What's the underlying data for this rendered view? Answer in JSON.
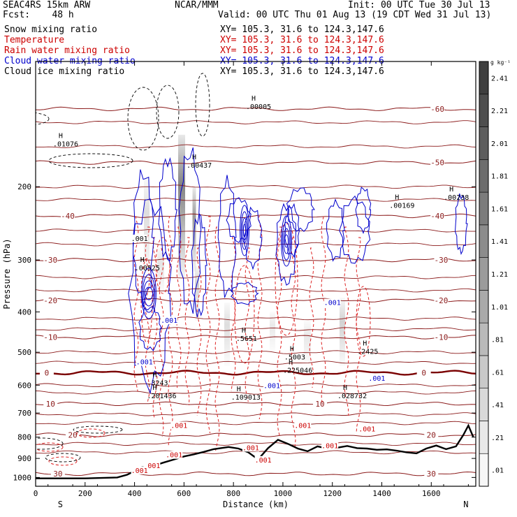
{
  "header": {
    "model": "SEAC4RS 15km ARW",
    "center": "NCAR/MMM",
    "init": "Init: 00 UTC Tue 30 Jul 13",
    "fcst": "Fcst:    48 h",
    "valid": "Valid: 00 UTC Thu 01 Aug 13 (19 CDT Wed 31 Jul 13)"
  },
  "fields": [
    {
      "name": "Snow mixing ratio",
      "color": "#000000",
      "xy": "XY= 105.3, 31.6 to 124.3,147.6"
    },
    {
      "name": "Temperature",
      "color": "#cc0000",
      "xy": "XY= 105.3, 31.6 to 124.3,147.6"
    },
    {
      "name": "Rain water mixing ratio",
      "color": "#cc0000",
      "xy": "XY= 105.3, 31.6 to 124.3,147.6"
    },
    {
      "name": "Cloud water mixing ratio",
      "color": "#0000cc",
      "xy": "XY= 105.3, 31.6 to 124.3,147.6"
    },
    {
      "name": "Cloud ice mixing ratio",
      "color": "#000000",
      "xy": "XY= 105.3, 31.6 to 124.3,147.6"
    }
  ],
  "chart_data": {
    "type": "contour",
    "xlabel": "Distance (km)",
    "ylabel": "Pressure (hPa)",
    "xlim": [
      0,
      1780
    ],
    "ylim": [
      1050,
      100
    ],
    "x_ticks": [
      0,
      200,
      400,
      600,
      800,
      1000,
      1200,
      1400,
      1600
    ],
    "y_ticks": [
      200,
      300,
      400,
      500,
      600,
      700,
      800,
      900,
      1000
    ],
    "x_end_labels": {
      "left": "S",
      "right": "N"
    },
    "colorbar": {
      "unit": "g kg⁻¹",
      "ticks": [
        ".01",
        ".21",
        ".41",
        ".61",
        ".81",
        "1.01",
        "1.21",
        "1.41",
        "1.61",
        "1.81",
        "2.01",
        "2.21",
        "2.41"
      ]
    },
    "temperature_contours": [
      {
        "label": "-60",
        "p": 130,
        "label_x": 1625
      },
      {
        "label": "-50",
        "p": 175,
        "label_x": 1625
      },
      {
        "label": "-40",
        "p": 235,
        "label_x": 130,
        "label_x2": 1625
      },
      {
        "label": "-30",
        "p": 300,
        "label_x": 60,
        "label_x2": 1640
      },
      {
        "label": "-20",
        "p": 375,
        "label_x": 60,
        "label_x2": 1640
      },
      {
        "label": "-10",
        "p": 460,
        "label_x": 60,
        "label_x2": 1640
      },
      {
        "label": "0",
        "p": 560,
        "label_x": 45,
        "label_x2": 1570
      },
      {
        "label": "10",
        "p": 665,
        "label_x": 60,
        "label_x2": 1150
      },
      {
        "label": "20",
        "p": 790,
        "label_x": 150,
        "label_x2": 1600
      },
      {
        "label": "30",
        "p": 980,
        "label_x": 90,
        "label_x2": 1600
      }
    ],
    "terrain": {
      "x": [
        0,
        200,
        330,
        370,
        400,
        430,
        470,
        520,
        560,
        600,
        640,
        680,
        720,
        780,
        820,
        860,
        900,
        940,
        980,
        1020,
        1060,
        1100,
        1140,
        1180,
        1220,
        1260,
        1300,
        1340,
        1380,
        1420,
        1460,
        1500,
        1540,
        1580,
        1620,
        1660,
        1700,
        1730,
        1750,
        1770
      ],
      "p": [
        1005,
        1005,
        1000,
        985,
        965,
        945,
        940,
        920,
        905,
        890,
        880,
        868,
        855,
        845,
        852,
        870,
        905,
        850,
        812,
        830,
        852,
        865,
        842,
        852,
        848,
        840,
        850,
        852,
        858,
        856,
        862,
        870,
        875,
        852,
        838,
        855,
        842,
        790,
        750,
        800
      ]
    },
    "max_labels": [
      {
        "text": ".01076",
        "x": 110,
        "p": 160
      },
      {
        "text": ".00437",
        "x": 650,
        "p": 180
      },
      {
        "text": ".00005",
        "x": 890,
        "p": 130
      },
      {
        "text": ".00169",
        "x": 1470,
        "p": 225
      },
      {
        "text": ".00238",
        "x": 1690,
        "p": 215
      },
      {
        "text": ".00525",
        "x": 440,
        "p": 318
      },
      {
        "text": ".5651",
        "x": 850,
        "p": 470
      },
      {
        "text": ".5003",
        "x": 1045,
        "p": 520
      },
      {
        "text": ".2425",
        "x": 1340,
        "p": 505
      },
      {
        "text": ".3243",
        "x": 490,
        "p": 600
      },
      {
        "text": ".201436",
        "x": 490,
        "p": 645
      },
      {
        "text": ".109013",
        "x": 830,
        "p": 650
      },
      {
        "text": ".028732",
        "x": 1260,
        "p": 645
      },
      {
        "text": ".225046",
        "x": 1040,
        "p": 560
      }
    ],
    "contour_labels": [
      {
        "text": ".001",
        "x": 420,
        "p": 270,
        "color": "#000000"
      },
      {
        "text": ".001",
        "x": 540,
        "p": 425,
        "color": "#0000cc"
      },
      {
        "text": ".001",
        "x": 1200,
        "p": 385,
        "color": "#0000cc"
      },
      {
        "text": ".001",
        "x": 440,
        "p": 535,
        "color": "#0000cc"
      },
      {
        "text": ".001",
        "x": 955,
        "p": 610,
        "color": "#0000cc"
      },
      {
        "text": ".001",
        "x": 1380,
        "p": 585,
        "color": "#0000cc"
      },
      {
        "text": ".001",
        "x": 580,
        "p": 760,
        "color": "#cc0000"
      },
      {
        "text": ".001",
        "x": 1080,
        "p": 760,
        "color": "#cc0000"
      },
      {
        "text": ".001",
        "x": 1340,
        "p": 775,
        "color": "#cc0000"
      },
      {
        "text": ".001",
        "x": 1190,
        "p": 850,
        "color": "#cc0000"
      },
      {
        "text": ".001",
        "x": 870,
        "p": 860,
        "color": "#cc0000"
      },
      {
        "text": ".001",
        "x": 560,
        "p": 895,
        "color": "#cc0000"
      },
      {
        "text": ".001",
        "x": 470,
        "p": 950,
        "color": "#cc0000"
      },
      {
        "text": ".001",
        "x": 420,
        "p": 975,
        "color": "#cc0000"
      },
      {
        "text": ".001",
        "x": 920,
        "p": 920,
        "color": "#cc0000"
      }
    ]
  }
}
